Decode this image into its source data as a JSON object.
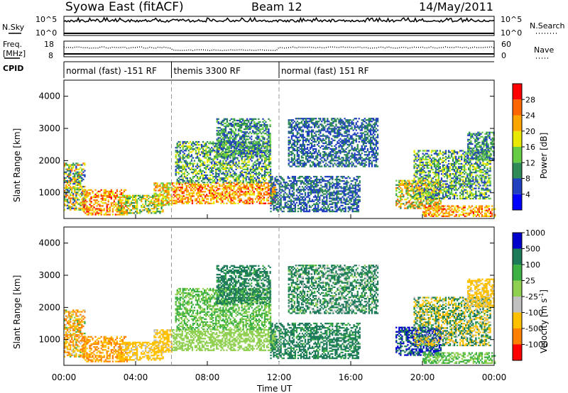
{
  "header": {
    "station": "Syowa East (fitACF)",
    "beam": "Beam 12",
    "date": "14/May/2011"
  },
  "top_panels": {
    "nsky": {
      "label": "N.Sky",
      "left_ticks": [
        "10^5",
        "10^0"
      ],
      "right_ticks": [
        "10^5",
        "10^0"
      ],
      "right_label": "N.Search"
    },
    "freq": {
      "label_line1": "Freq.",
      "label_line2": "[MHz]",
      "left_ticks": [
        "18",
        "8"
      ],
      "right_ticks": [
        "60",
        "0"
      ],
      "right_label": "Nave"
    },
    "cpid": {
      "label": "CPID",
      "segments": [
        {
          "start": 0,
          "end": 6,
          "text": "normal (fast) -151 RF"
        },
        {
          "start": 6,
          "end": 12,
          "text": "themis 3300 RF"
        },
        {
          "start": 12,
          "end": 24,
          "text": "normal (fast) 151 RF"
        }
      ]
    }
  },
  "colors": {
    "power_scale": [
      "#0000ff",
      "#2040c0",
      "#2e8b57",
      "#66cc44",
      "#e8e800",
      "#ffa500",
      "#ff6600",
      "#ff0000"
    ],
    "velocity_scale": [
      "#ff0000",
      "#ff8000",
      "#ffc000",
      "#c0c0c0",
      "#90d050",
      "#3cb043",
      "#1e7b5a",
      "#0000cc"
    ],
    "ground_scatter": "#c8c8c0"
  },
  "chart_data": [
    {
      "type": "heatmap",
      "name": "Power panel",
      "ylabel": "Slant Range [km]",
      "ylim": [
        200,
        4500
      ],
      "yticks": [
        "1000",
        "2000",
        "3000",
        "4000"
      ],
      "ytick_values": [
        1000,
        2000,
        3000,
        4000
      ],
      "xlim": [
        0,
        24
      ],
      "colorbar": {
        "label": "Power [dB]",
        "ticks": [
          "4",
          "8",
          "12",
          "16",
          "20",
          "24",
          "28"
        ],
        "tick_values": [
          4,
          8,
          12,
          16,
          20,
          24,
          28
        ],
        "range": [
          0,
          32
        ]
      }
    },
    {
      "type": "heatmap",
      "name": "Velocity panel",
      "ylabel": "Slant Range [km]",
      "ylim": [
        200,
        4500
      ],
      "yticks": [
        "1000",
        "2000",
        "3000",
        "4000"
      ],
      "ytick_values": [
        1000,
        2000,
        3000,
        4000
      ],
      "xlim": [
        0,
        24
      ],
      "xlabel": "Time UT",
      "xticks": [
        "00:00",
        "04:00",
        "08:00",
        "12:00",
        "16:00",
        "20:00",
        "00:00"
      ],
      "xtick_values": [
        0,
        4,
        8,
        12,
        16,
        20,
        24
      ],
      "colorbar": {
        "label": "Velocity [m s",
        "label_sup": "-1",
        "label_close": "]",
        "ticks": [
          "-1000",
          "-500",
          "-100",
          "-25",
          "25",
          "100",
          "500",
          "1000"
        ]
      }
    }
  ],
  "scatter_regions": [
    {
      "t0": 0.0,
      "t1": 1.2,
      "r0": 450,
      "r1": 1900,
      "power": [
        4,
        28
      ],
      "vel": [
        -1000,
        100
      ]
    },
    {
      "t0": 1.0,
      "t1": 3.5,
      "r0": 300,
      "r1": 1100,
      "power": [
        16,
        30
      ],
      "vel": [
        -1000,
        -100
      ]
    },
    {
      "t0": 3.0,
      "t1": 5.5,
      "r0": 350,
      "r1": 900,
      "power": [
        8,
        24
      ],
      "vel": [
        -500,
        -25
      ]
    },
    {
      "t0": 5.0,
      "t1": 6.0,
      "r0": 600,
      "r1": 1300,
      "power": [
        12,
        28
      ],
      "vel": [
        -500,
        -25
      ]
    },
    {
      "t0": 6.0,
      "t1": 11.8,
      "r0": 650,
      "r1": 1300,
      "power": [
        16,
        30
      ],
      "vel": [
        -25,
        25
      ]
    },
    {
      "t0": 6.2,
      "t1": 11.5,
      "r0": 1300,
      "r1": 2600,
      "power": [
        4,
        20
      ],
      "vel": [
        -25,
        100
      ]
    },
    {
      "t0": 8.5,
      "t1": 11.5,
      "r0": 2100,
      "r1": 3300,
      "power": [
        4,
        16
      ],
      "vel": [
        25,
        500
      ]
    },
    {
      "t0": 11.5,
      "t1": 16.5,
      "r0": 400,
      "r1": 1500,
      "power": [
        4,
        12
      ],
      "vel": [
        25,
        500
      ]
    },
    {
      "t0": 12.5,
      "t1": 17.5,
      "r0": 1800,
      "r1": 3300,
      "power": [
        4,
        12
      ],
      "vel": [
        -100,
        500
      ]
    },
    {
      "t0": 18.5,
      "t1": 21.0,
      "r0": 500,
      "r1": 1400,
      "power": [
        8,
        28
      ],
      "vel": [
        100,
        1000
      ]
    },
    {
      "t0": 20.0,
      "t1": 24.0,
      "r0": 250,
      "r1": 600,
      "power": [
        16,
        30
      ],
      "vel": [
        -25,
        100
      ]
    },
    {
      "t0": 19.5,
      "t1": 23.8,
      "r0": 800,
      "r1": 2300,
      "power": [
        4,
        20
      ],
      "vel": [
        -500,
        500
      ]
    },
    {
      "t0": 22.5,
      "t1": 24.0,
      "r0": 2000,
      "r1": 2900,
      "power": [
        4,
        16
      ],
      "vel": [
        -500,
        -25
      ]
    }
  ]
}
